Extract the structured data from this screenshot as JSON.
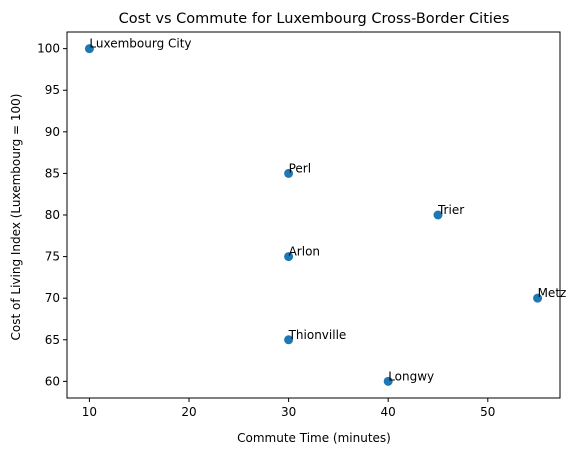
{
  "chart_data": {
    "type": "scatter",
    "title": "Cost vs Commute for Luxembourg Cross-Border Cities",
    "xlabel": "Commute Time (minutes)",
    "ylabel": "Cost of Living Index (Luxembourg = 100)",
    "xlim": [
      7.75,
      57.25
    ],
    "ylim": [
      58,
      102
    ],
    "xticks": [
      10,
      20,
      30,
      40,
      50
    ],
    "yticks": [
      60,
      65,
      70,
      75,
      80,
      85,
      90,
      95,
      100
    ],
    "grid": false,
    "marker_color": "#1f77b4",
    "points": [
      {
        "label": "Luxembourg City",
        "x": 10,
        "y": 100
      },
      {
        "label": "Perl",
        "x": 30,
        "y": 85
      },
      {
        "label": "Trier",
        "x": 45,
        "y": 80
      },
      {
        "label": "Arlon",
        "x": 30,
        "y": 75
      },
      {
        "label": "Metz",
        "x": 55,
        "y": 70
      },
      {
        "label": "Thionville",
        "x": 30,
        "y": 65
      },
      {
        "label": "Longwy",
        "x": 40,
        "y": 60
      }
    ]
  }
}
